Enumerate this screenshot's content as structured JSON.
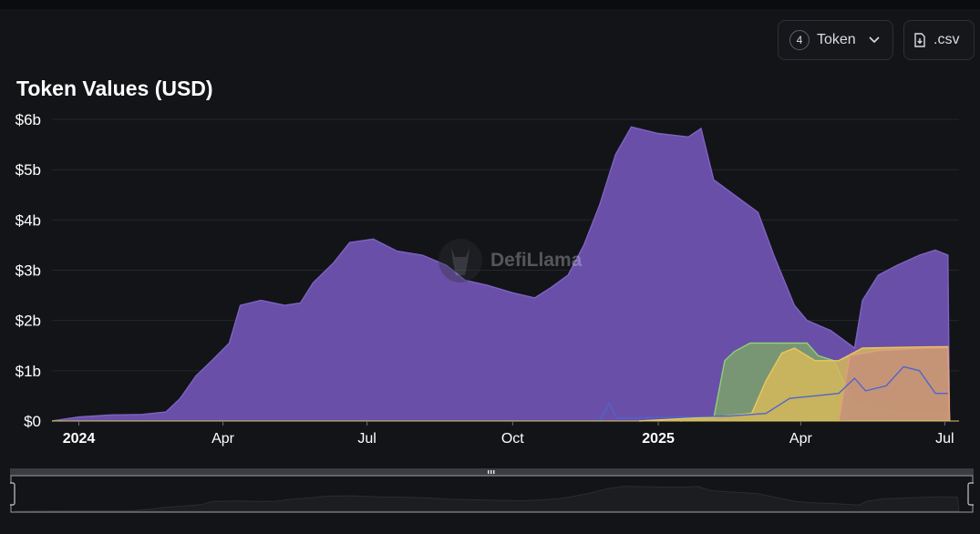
{
  "header": {
    "token_count": "4",
    "token_label": "Token",
    "csv_label": ".csv"
  },
  "watermark": {
    "text": "DefiLlama"
  },
  "chart_data": {
    "type": "area",
    "title": "Token Values (USD)",
    "xlabel": "",
    "ylabel": "",
    "grid": true,
    "legend": "none",
    "x_range": [
      "2023-12-15",
      "2025-07-10"
    ],
    "ylim": [
      0,
      6.2
    ],
    "y_ticks": [
      {
        "value": 0,
        "label": "$0"
      },
      {
        "value": 1,
        "label": "$1b"
      },
      {
        "value": 2,
        "label": "$2b"
      },
      {
        "value": 3,
        "label": "$3b"
      },
      {
        "value": 4,
        "label": "$4b"
      },
      {
        "value": 5,
        "label": "$5b"
      },
      {
        "value": 6,
        "label": "$6b"
      }
    ],
    "x_ticks": [
      {
        "date": "2024-01-01",
        "label": "2024",
        "bold": true
      },
      {
        "date": "2024-04-01",
        "label": "Apr",
        "bold": false
      },
      {
        "date": "2024-07-01",
        "label": "Jul",
        "bold": false
      },
      {
        "date": "2024-10-01",
        "label": "Oct",
        "bold": false
      },
      {
        "date": "2025-01-01",
        "label": "2025",
        "bold": true
      },
      {
        "date": "2025-04-01",
        "label": "Apr",
        "bold": false
      },
      {
        "date": "2025-07-01",
        "label": "Jul",
        "bold": false
      }
    ],
    "series": [
      {
        "color": "#6a4fa8",
        "line": "#7d63c4",
        "points": [
          [
            "2023-12-15",
            0.0
          ],
          [
            "2024-01-01",
            0.08
          ],
          [
            "2024-01-20",
            0.12
          ],
          [
            "2024-02-10",
            0.13
          ],
          [
            "2024-02-25",
            0.18
          ],
          [
            "2024-03-05",
            0.45
          ],
          [
            "2024-03-15",
            0.9
          ],
          [
            "2024-03-25",
            1.2
          ],
          [
            "2024-04-05",
            1.55
          ],
          [
            "2024-04-12",
            2.3
          ],
          [
            "2024-04-25",
            2.4
          ],
          [
            "2024-05-10",
            2.3
          ],
          [
            "2024-05-20",
            2.35
          ],
          [
            "2024-05-28",
            2.75
          ],
          [
            "2024-06-10",
            3.15
          ],
          [
            "2024-06-20",
            3.55
          ],
          [
            "2024-07-05",
            3.62
          ],
          [
            "2024-07-20",
            3.38
          ],
          [
            "2024-08-05",
            3.3
          ],
          [
            "2024-08-20",
            3.1
          ],
          [
            "2024-09-01",
            2.8
          ],
          [
            "2024-09-15",
            2.7
          ],
          [
            "2024-10-01",
            2.55
          ],
          [
            "2024-10-15",
            2.45
          ],
          [
            "2024-10-25",
            2.65
          ],
          [
            "2024-11-05",
            2.9
          ],
          [
            "2024-11-15",
            3.5
          ],
          [
            "2024-11-25",
            4.3
          ],
          [
            "2024-12-05",
            5.3
          ],
          [
            "2024-12-15",
            5.85
          ],
          [
            "2025-01-01",
            5.72
          ],
          [
            "2025-01-20",
            5.65
          ],
          [
            "2025-01-28",
            5.82
          ],
          [
            "2025-02-05",
            4.8
          ],
          [
            "2025-02-20",
            4.45
          ],
          [
            "2025-03-05",
            4.15
          ],
          [
            "2025-03-15",
            3.3
          ],
          [
            "2025-03-28",
            2.3
          ],
          [
            "2025-04-05",
            2.0
          ],
          [
            "2025-04-20",
            1.8
          ],
          [
            "2025-05-05",
            1.45
          ],
          [
            "2025-05-10",
            2.4
          ],
          [
            "2025-05-20",
            2.9
          ],
          [
            "2025-06-01",
            3.1
          ],
          [
            "2025-06-15",
            3.3
          ],
          [
            "2025-06-25",
            3.4
          ],
          [
            "2025-07-03",
            3.3
          ],
          [
            "2025-07-04",
            0.0
          ]
        ]
      },
      {
        "color": "#7aa26a",
        "line": "#8fd07a",
        "points": [
          [
            "2025-01-15",
            0.0
          ],
          [
            "2025-02-05",
            0.05
          ],
          [
            "2025-02-12",
            1.2
          ],
          [
            "2025-02-18",
            1.38
          ],
          [
            "2025-02-28",
            1.55
          ],
          [
            "2025-03-12",
            1.55
          ],
          [
            "2025-04-05",
            1.55
          ],
          [
            "2025-04-12",
            1.3
          ],
          [
            "2025-04-22",
            1.2
          ],
          [
            "2025-05-05",
            0.3
          ],
          [
            "2025-05-25",
            0.2
          ],
          [
            "2025-07-03",
            0.15
          ],
          [
            "2025-07-04",
            0.0
          ]
        ]
      },
      {
        "color": "#d6b85a",
        "line": "#e8c85f",
        "points": [
          [
            "2024-12-20",
            0.0
          ],
          [
            "2025-02-05",
            0.08
          ],
          [
            "2025-03-01",
            0.15
          ],
          [
            "2025-03-10",
            0.8
          ],
          [
            "2025-03-20",
            1.35
          ],
          [
            "2025-03-28",
            1.45
          ],
          [
            "2025-04-10",
            1.2
          ],
          [
            "2025-04-25",
            1.2
          ],
          [
            "2025-05-10",
            1.45
          ],
          [
            "2025-06-10",
            1.47
          ],
          [
            "2025-07-03",
            1.48
          ],
          [
            "2025-07-04",
            0.0
          ]
        ]
      },
      {
        "color": "#c4907a",
        "line": "#e0a07a",
        "points": [
          [
            "2025-04-25",
            0.0
          ],
          [
            "2025-05-02",
            1.3
          ],
          [
            "2025-05-20",
            1.4
          ],
          [
            "2025-06-15",
            1.45
          ],
          [
            "2025-07-03",
            1.46
          ],
          [
            "2025-07-04",
            0.0
          ]
        ]
      },
      {
        "color": "none",
        "line": "#4d66cc",
        "points": [
          [
            "2024-11-25",
            0.0
          ],
          [
            "2024-12-01",
            0.35
          ],
          [
            "2024-12-06",
            0.05
          ],
          [
            "2025-02-15",
            0.1
          ],
          [
            "2025-03-10",
            0.15
          ],
          [
            "2025-03-25",
            0.45
          ],
          [
            "2025-04-10",
            0.5
          ],
          [
            "2025-04-25",
            0.55
          ],
          [
            "2025-05-05",
            0.85
          ],
          [
            "2025-05-12",
            0.6
          ],
          [
            "2025-05-25",
            0.7
          ],
          [
            "2025-06-05",
            1.08
          ],
          [
            "2025-06-15",
            1.0
          ],
          [
            "2025-06-25",
            0.55
          ],
          [
            "2025-07-03",
            0.55
          ]
        ]
      }
    ]
  },
  "brush": {
    "handle_icon": "grip-icon"
  }
}
